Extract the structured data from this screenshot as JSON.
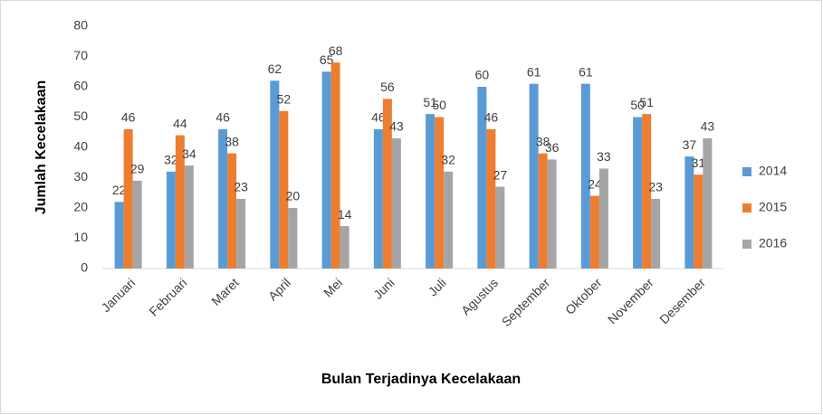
{
  "chart_data": {
    "type": "bar",
    "xlabel": "Bulan Terjadinya Kecelakaan",
    "ylabel": "Jumlah Kecelakaan",
    "categories": [
      "Januari",
      "Februari",
      "Maret",
      "April",
      "Mei",
      "Juni",
      "Juli",
      "Agustus",
      "September",
      "Oktober",
      "November",
      "Desember"
    ],
    "series": [
      {
        "name": "2014",
        "color": "#5b9bd5",
        "values": [
          22,
          32,
          46,
          62,
          65,
          46,
          51,
          60,
          61,
          61,
          50,
          37
        ]
      },
      {
        "name": "2015",
        "color": "#ed7d31",
        "values": [
          46,
          44,
          38,
          52,
          68,
          56,
          50,
          46,
          38,
          24,
          51,
          31
        ]
      },
      {
        "name": "2016",
        "color": "#a5a5a5",
        "values": [
          29,
          34,
          23,
          20,
          14,
          43,
          32,
          27,
          36,
          33,
          23,
          43
        ]
      }
    ],
    "ylim": [
      0,
      80
    ],
    "yticks": [
      0,
      10,
      20,
      30,
      40,
      50,
      60,
      70,
      80
    ],
    "grid": false,
    "legend": "right",
    "data_labels": true
  }
}
